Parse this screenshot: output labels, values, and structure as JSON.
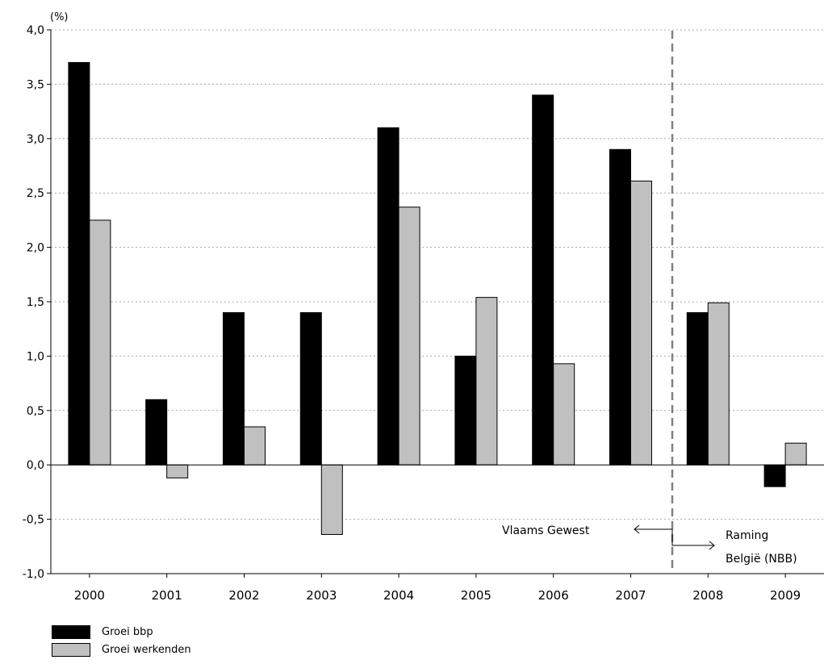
{
  "chart_data": {
    "type": "bar",
    "unit_label": "(%)",
    "categories": [
      "2000",
      "2001",
      "2002",
      "2003",
      "2004",
      "2005",
      "2006",
      "2007",
      "2008",
      "2009"
    ],
    "series": [
      {
        "name": "Groei bbp",
        "color": "#000000",
        "values": [
          3.7,
          0.6,
          1.4,
          1.4,
          3.1,
          1.0,
          3.4,
          2.9,
          1.4,
          -0.2
        ]
      },
      {
        "name": "Groei werkenden",
        "color": "#c0c0c0",
        "values": [
          2.25,
          -0.12,
          0.35,
          -0.64,
          2.37,
          1.54,
          0.93,
          2.61,
          1.49,
          0.2
        ]
      }
    ],
    "ylim": [
      -1.0,
      4.0
    ],
    "yticks": [
      "-1,0",
      "-0,5",
      "0,0",
      "0,5",
      "1,0",
      "1,5",
      "2,0",
      "2,5",
      "3,0",
      "3,5",
      "4,0"
    ],
    "ytick_values": [
      -1.0,
      -0.5,
      0.0,
      0.5,
      1.0,
      1.5,
      2.0,
      2.5,
      3.0,
      3.5,
      4.0
    ],
    "grid": true,
    "legend_position": "bottom-left",
    "annotations": {
      "left_label": "Vlaams Gewest",
      "right_label_line1": "Raming",
      "right_label_line2": "België (NBB)"
    }
  }
}
